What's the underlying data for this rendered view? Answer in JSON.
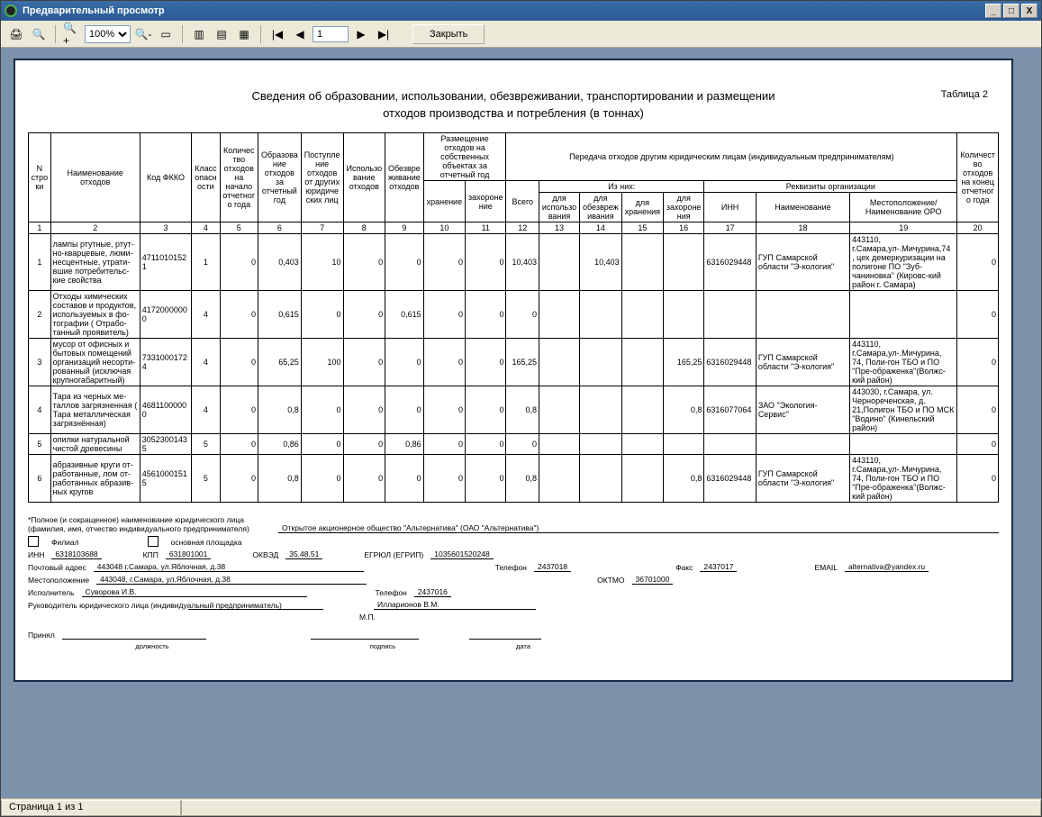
{
  "window": {
    "title": "Предварительный просмотр",
    "minimize": "_",
    "maximize": "□",
    "close": "X"
  },
  "toolbar": {
    "zoom_value": "100%",
    "page_value": "1",
    "close_label": "Закрыть"
  },
  "report": {
    "title_line1": "Сведения об образовании, использовании, обезвреживании, транспортировании и размещении",
    "title_line2": "отходов производства и потребления (в тоннах)",
    "table_label": "Таблица 2",
    "headers": {
      "n": "N стро ки",
      "name": "Наименование отходов",
      "code": "Код ФККО",
      "class": "Класс опасн ости",
      "qty_start": "Количес тво отходов на начало отчетног о года",
      "formed": "Образова ние отходов за отчетный год",
      "received": "Поступле ние отходов от других юридиче ских лиц",
      "used": "Использо вание отходов",
      "neutr": "Обезвре живание отходов",
      "place_group": "Размещение отходов на собственных объектах за отчетный год",
      "place_store": "хранение",
      "place_bury": "захороне ние",
      "transfer_group": "Передача отходов другим юридическим лицам (индивидуальным предпринимателям)",
      "of_them": "Из них:",
      "reqs": "Реквизиты организации",
      "all": "Всего",
      "for_use": "для использо вания",
      "for_neutr": "для обезвреж ивания",
      "for_store": "для хранения",
      "for_bury": "для захороне ния",
      "inn": "ИНН",
      "org_name": "Наименование",
      "location": "Местоположение/ Наименование ОРО",
      "qty_end": "Количест во отходов на конец отчетног о года"
    },
    "colnums": [
      "1",
      "2",
      "3",
      "4",
      "5",
      "6",
      "7",
      "8",
      "9",
      "10",
      "11",
      "12",
      "13",
      "14",
      "15",
      "16",
      "17",
      "18",
      "19",
      "20"
    ],
    "rows": [
      {
        "n": "1",
        "name": "лампы ртутные, ртут-но-кварцевые, люми-несцентные, утрати-вшие потребительс-кие свойства",
        "code": "4711010152 1",
        "cls": "1",
        "start": "0",
        "formed": "0,403",
        "recv": "10",
        "used": "0",
        "neutr": "0",
        "store": "0",
        "bury": "0",
        "all": "10,403",
        "fuse": "",
        "fneutr": "10,403",
        "fstore": "",
        "fbury": "",
        "inn": "6316029448",
        "org": "ГУП Самарской области \"Э-кология\"",
        "loc": "443110, г.Самара,ул-.Мичурина,74 , цех демеркуризации на полигоне ПО \"Зуб-чаниновка\" (Кировс-кий район г. Самара)",
        "end": "0"
      },
      {
        "n": "2",
        "name": "Отходы химических составов и продуктов, используемых в фо-тографии ( Отрабо-танный проявитель)",
        "code": "4172000000 0",
        "cls": "4",
        "start": "0",
        "formed": "0,615",
        "recv": "0",
        "used": "0",
        "neutr": "0,615",
        "store": "0",
        "bury": "0",
        "all": "0",
        "fuse": "",
        "fneutr": "",
        "fstore": "",
        "fbury": "",
        "inn": "",
        "org": "",
        "loc": "",
        "end": "0"
      },
      {
        "n": "3",
        "name": "мусор от офисных и бытовых помещений организаций несорти-рованный (исключая крупногабаритный)",
        "code": "7331000172 4",
        "cls": "4",
        "start": "0",
        "formed": "65,25",
        "recv": "100",
        "used": "0",
        "neutr": "0",
        "store": "0",
        "bury": "0",
        "all": "165,25",
        "fuse": "",
        "fneutr": "",
        "fstore": "",
        "fbury": "165,25",
        "inn": "6316029448",
        "org": "ГУП Самарской области \"Э-кология\"",
        "loc": "443110, г.Самара,ул-.Мичурина, 74, Поли-гон ТБО и ПО \"Пре-ображенка\"(Волжс-кий район)",
        "end": "0"
      },
      {
        "n": "4",
        "name": "Тара из черных ме-таллов загрязненная ( Тара металлическая загрязнённая)",
        "code": "4681100000 0",
        "cls": "4",
        "start": "0",
        "formed": "0,8",
        "recv": "0",
        "used": "0",
        "neutr": "0",
        "store": "0",
        "bury": "0",
        "all": "0,8",
        "fuse": "",
        "fneutr": "",
        "fstore": "",
        "fbury": "0,8",
        "inn": "6316077064",
        "org": "ЗАО \"Экология-Сервис\"",
        "loc": "443030, г.Самара, ул. Чернореченская, д. 21,Полигон ТБО и ПО МСК \"Водино\" (Кинельский район)",
        "end": "0"
      },
      {
        "n": "5",
        "name": "опилки натуральной чистой древесины",
        "code": "3052300143 5",
        "cls": "5",
        "start": "0",
        "formed": "0,86",
        "recv": "0",
        "used": "0",
        "neutr": "0,86",
        "store": "0",
        "bury": "0",
        "all": "0",
        "fuse": "",
        "fneutr": "",
        "fstore": "",
        "fbury": "",
        "inn": "",
        "org": "",
        "loc": "",
        "end": "0"
      },
      {
        "n": "6",
        "name": "абразивные круги от-работанные, лом от-работанных абразив-ных кругов",
        "code": "4561000151 5",
        "cls": "5",
        "start": "0",
        "formed": "0,8",
        "recv": "0",
        "used": "0",
        "neutr": "0",
        "store": "0",
        "bury": "0",
        "all": "0,8",
        "fuse": "",
        "fneutr": "",
        "fstore": "",
        "fbury": "0,8",
        "inn": "6316029448",
        "org": "ГУП Самарской области \"Э-кология\"",
        "loc": "443110, г.Самара,ул-.Мичурина, 74, Поли-гон ТБО и ПО \"Пре-ображенка\"(Волжс-кий район)",
        "end": "0"
      }
    ]
  },
  "footer": {
    "head_note1": "*Полное (и сокращенное) наименование юридического лица",
    "head_note2": "(фамилия, имя, отчество индивидуального предпринимателя)",
    "org_full": "Открытое акционерное общество \"Альтернатива\" (ОАО \"Альтернатива\")",
    "filial": "Филиал",
    "main_area": "основная площадка",
    "inn_l": "ИНН",
    "inn_v": "6318103688",
    "kpp_l": "КПП",
    "kpp_v": "631801001",
    "okved_l": "ОКВЭД",
    "okved_v": "35.48.51",
    "egr_l": "ЕГРЮЛ (ЕГРИП)",
    "egr_v": "1035601520248",
    "addr_l": "Почтовый адрес",
    "addr_v": "443048     г.Самара, ул.Яблочная, д.38",
    "tel_l": "Телефон",
    "tel_v": "2437018",
    "fax_l": "Факс",
    "fax_v": "2437017",
    "email_l": "EMAIL",
    "email_v": "alternativa@yandex.ru",
    "loc_l": "Местоположение",
    "loc_v": "443048, г.Самара, ул.Яблочная, д.38",
    "oktmo_l": "ОКТМО",
    "oktmo_v": "36701000",
    "exec_l": "Исполнитель",
    "exec_v": "Суворова И.В.",
    "exec_tel_l": "Телефон",
    "exec_tel_v": "2437016",
    "head_l": "Руководитель юридического лица (индивидуальный предприниматель)",
    "head_v": "Илларионов В.М.",
    "mp": "М.П.",
    "accepted_l": "Принял",
    "pos_l": "должность",
    "sig_l": "подпись",
    "date_l": "дата"
  },
  "status": {
    "page": "Страница 1 из 1"
  }
}
